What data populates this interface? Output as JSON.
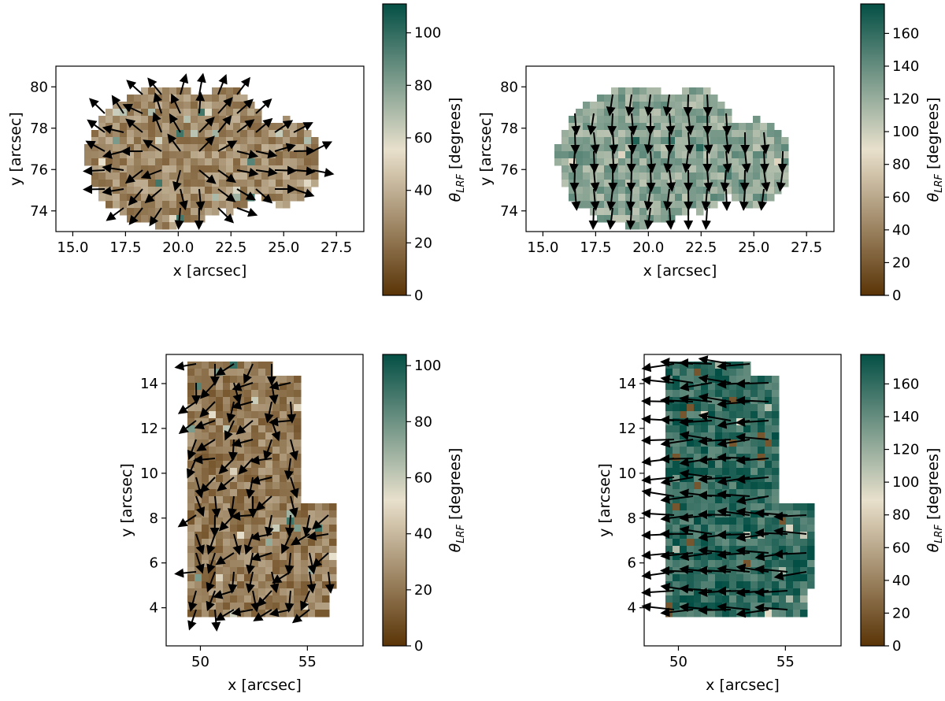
{
  "colors": {
    "map_low": "#5a3406",
    "map_mid": "#e8e0cc",
    "map_high": "#044f45",
    "arrow": "#000000",
    "frame": "#000000"
  },
  "chart_data": [
    {
      "type": "heatmap",
      "overlay": "quiver",
      "xlabel": "x [arcsec]",
      "ylabel": "y [arcsec]",
      "xlim": [
        14.2,
        28.8
      ],
      "ylim": [
        73.0,
        81.0
      ],
      "xticks": [
        "15.0",
        "17.5",
        "20.0",
        "22.5",
        "25.0",
        "27.5"
      ],
      "xtick_values": [
        15.0,
        17.5,
        20.0,
        22.5,
        25.0,
        27.5
      ],
      "yticks": [
        "74",
        "76",
        "78",
        "80"
      ],
      "ytick_values": [
        74,
        76,
        78,
        80
      ],
      "colorbar_label_main": "θ",
      "colorbar_label_sub": "LRF",
      "colorbar_label_tail": " [degrees]",
      "colorbar_range": [
        0,
        111
      ],
      "colorbar_ticks": [
        "0",
        "20",
        "40",
        "60",
        "80",
        "100"
      ],
      "colorbar_tick_values": [
        0,
        20,
        40,
        60,
        80,
        100
      ],
      "typical_value": 28,
      "vector_direction_deg": 0,
      "vector_mode": "radial"
    },
    {
      "type": "heatmap",
      "overlay": "quiver",
      "xlabel": "x [arcsec]",
      "ylabel": "y [arcsec]",
      "xlim": [
        14.2,
        28.8
      ],
      "ylim": [
        73.0,
        81.0
      ],
      "xticks": [
        "15.0",
        "17.5",
        "20.0",
        "22.5",
        "25.0",
        "27.5"
      ],
      "xtick_values": [
        15.0,
        17.5,
        20.0,
        22.5,
        25.0,
        27.5
      ],
      "yticks": [
        "74",
        "76",
        "78",
        "80"
      ],
      "ytick_values": [
        74,
        76,
        78,
        80
      ],
      "colorbar_label_main": "θ",
      "colorbar_label_sub": "LRF",
      "colorbar_label_tail": " [degrees]",
      "colorbar_range": [
        0,
        178
      ],
      "colorbar_ticks": [
        "0",
        "20",
        "40",
        "60",
        "80",
        "100",
        "120",
        "140",
        "160"
      ],
      "colorbar_tick_values": [
        0,
        20,
        40,
        60,
        80,
        100,
        120,
        140,
        160
      ],
      "typical_value": 125,
      "vector_direction_deg": -90,
      "vector_mode": "uniform"
    },
    {
      "type": "heatmap",
      "overlay": "quiver",
      "xlabel": "x [arcsec]",
      "ylabel": "y [arcsec]",
      "xlim": [
        48.4,
        57.6
      ],
      "ylim": [
        2.3,
        15.3
      ],
      "xticks": [
        "50",
        "55"
      ],
      "xtick_values": [
        50,
        55
      ],
      "yticks": [
        "4",
        "6",
        "8",
        "10",
        "12",
        "14"
      ],
      "ytick_values": [
        4,
        6,
        8,
        10,
        12,
        14
      ],
      "colorbar_label_main": "θ",
      "colorbar_label_sub": "LRF",
      "colorbar_label_tail": " [degrees]",
      "colorbar_range": [
        0,
        104
      ],
      "colorbar_ticks": [
        "0",
        "20",
        "40",
        "60",
        "80",
        "100"
      ],
      "colorbar_tick_values": [
        0,
        20,
        40,
        60,
        80,
        100
      ],
      "typical_value": 22,
      "vector_direction_deg": -100,
      "vector_mode": "mixed"
    },
    {
      "type": "heatmap",
      "overlay": "quiver",
      "xlabel": "x [arcsec]",
      "ylabel": "y [arcsec]",
      "xlim": [
        48.4,
        57.6
      ],
      "ylim": [
        2.3,
        15.3
      ],
      "xticks": [
        "50",
        "55"
      ],
      "xtick_values": [
        50,
        55
      ],
      "yticks": [
        "4",
        "6",
        "8",
        "10",
        "12",
        "14"
      ],
      "ytick_values": [
        4,
        6,
        8,
        10,
        12,
        14
      ],
      "colorbar_label_main": "θ",
      "colorbar_label_sub": "LRF",
      "colorbar_label_tail": " [degrees]",
      "colorbar_range": [
        0,
        178
      ],
      "colorbar_ticks": [
        "0",
        "20",
        "40",
        "60",
        "80",
        "100",
        "120",
        "140",
        "160"
      ],
      "colorbar_tick_values": [
        0,
        20,
        40,
        60,
        80,
        100,
        120,
        140,
        160
      ],
      "typical_value": 160,
      "vector_direction_deg": 180,
      "vector_mode": "uniform"
    }
  ]
}
